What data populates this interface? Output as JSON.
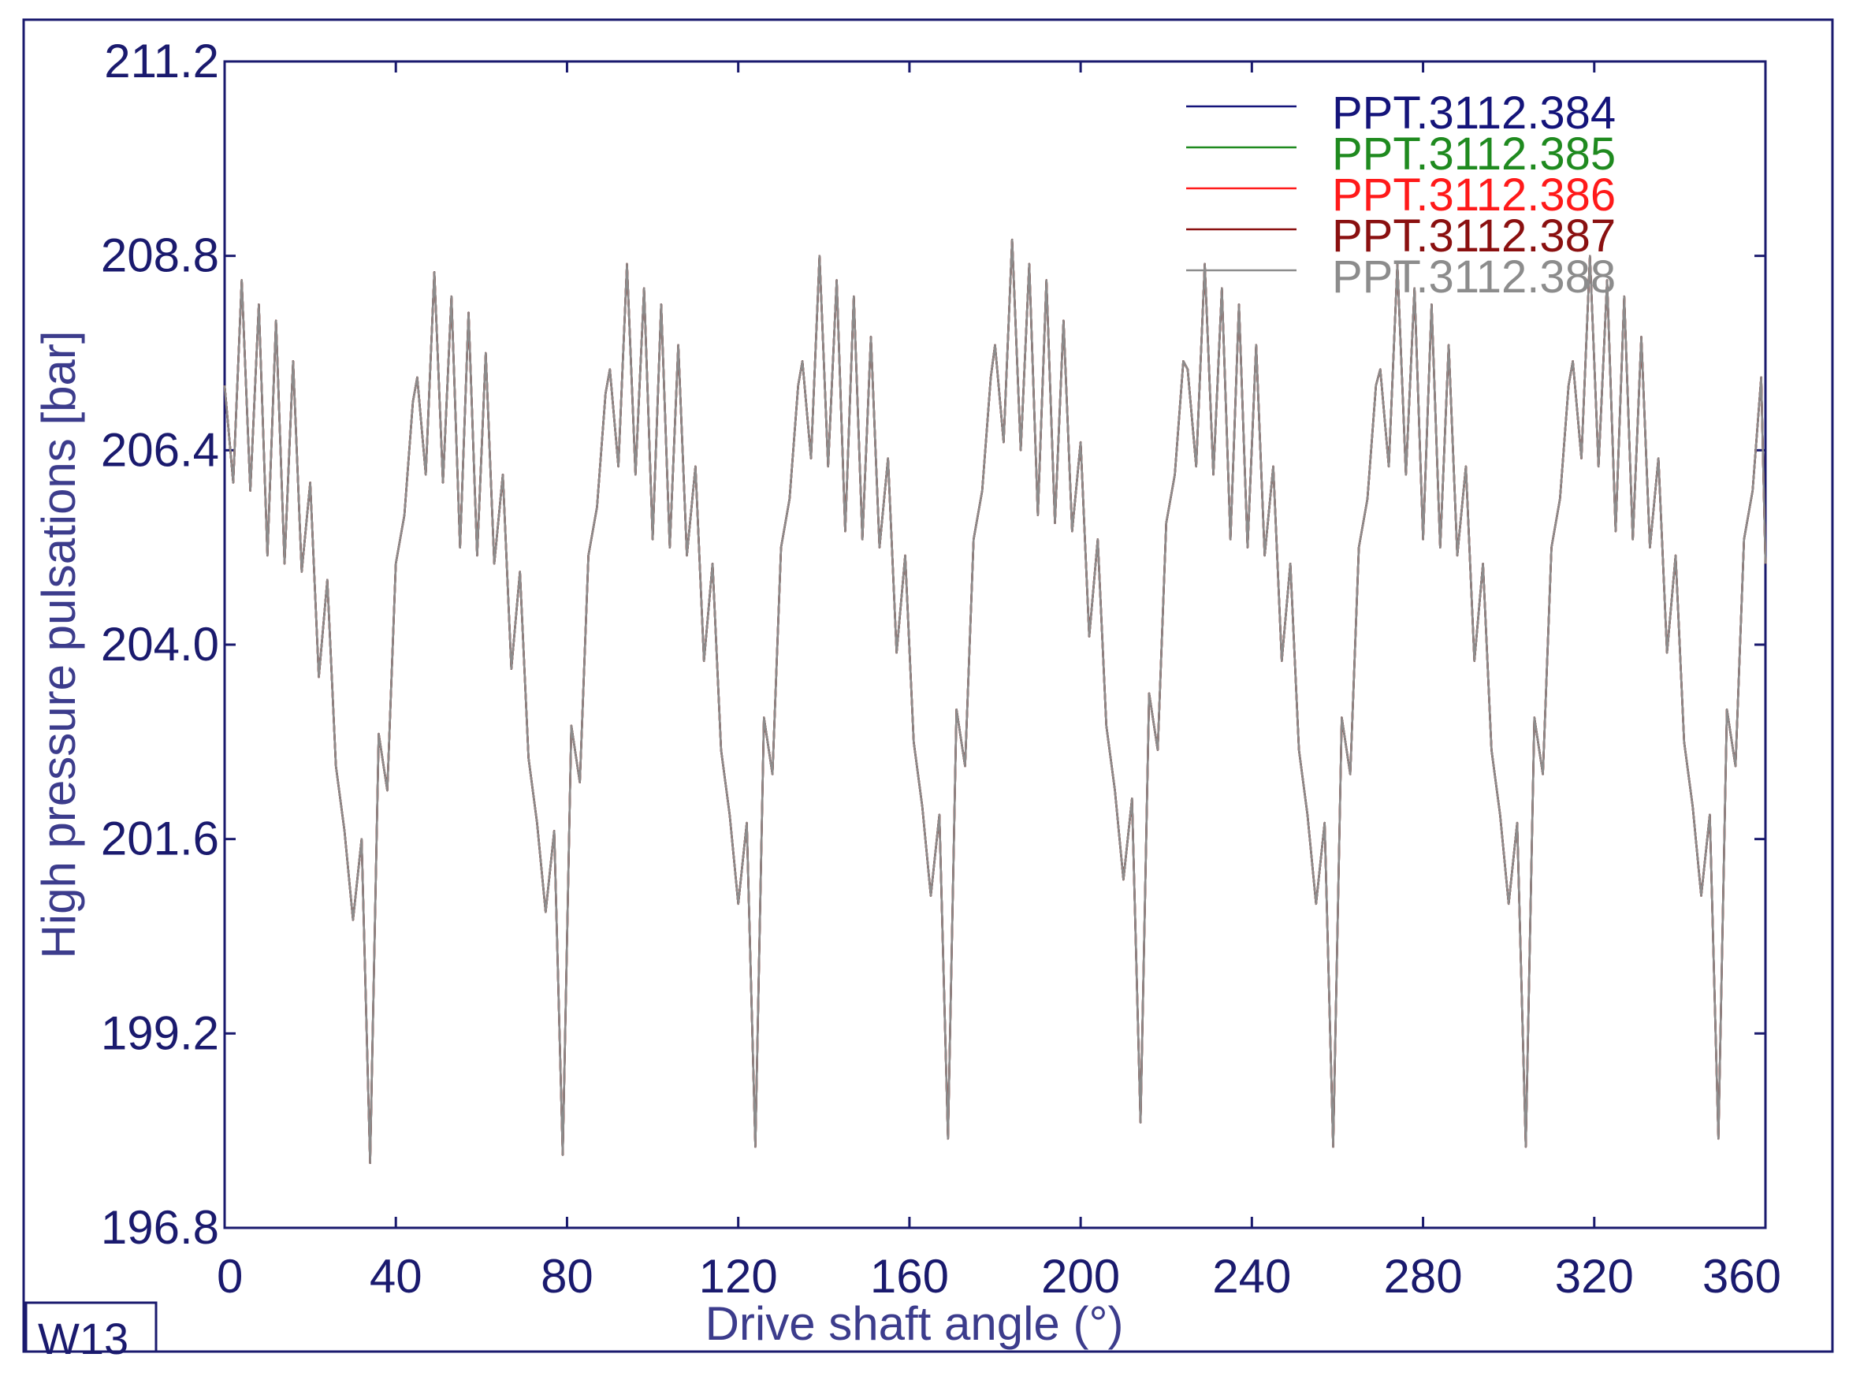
{
  "chart_data": {
    "type": "line",
    "title": "",
    "xlabel": "Drive shaft angle (°)",
    "ylabel": "High pressure pulsations  [bar]",
    "xlim": [
      0,
      360
    ],
    "ylim": [
      196.8,
      211.2
    ],
    "x_ticks": [
      "0",
      "40",
      "80",
      "120",
      "160",
      "200",
      "240",
      "280",
      "320",
      "360"
    ],
    "y_ticks": [
      "196.8",
      "199.2",
      "201.6",
      "204.0",
      "206.4",
      "208.8",
      "211.2"
    ],
    "grid": false,
    "legend_position": "top-right",
    "tag": "W13",
    "colors": {
      "frame": "#1a1a6e",
      "text": "#1a1a6e",
      "axis_title": "#3c3c8c"
    },
    "series": [
      {
        "name": "PPT.3112.384",
        "color": "#14147a"
      },
      {
        "name": "PPT.3112.385",
        "color": "#1f8a1f"
      },
      {
        "name": "PPT.3112.386",
        "color": "#ff1a1a"
      },
      {
        "name": "PPT.3112.387",
        "color": "#8a1010"
      },
      {
        "name": "PPT.3112.388",
        "color": "#8c8c8c"
      }
    ],
    "waveform": {
      "period": 45,
      "x": [
        0,
        2,
        4,
        6,
        8,
        10,
        12,
        14,
        16,
        18,
        20,
        22,
        24,
        26,
        28,
        30,
        32,
        34,
        36,
        38,
        40,
        42,
        44
      ],
      "y": [
        207.2,
        206.0,
        208.5,
        205.9,
        208.2,
        205.1,
        208.0,
        205.0,
        207.5,
        204.9,
        206.0,
        203.6,
        204.8,
        202.5,
        201.7,
        200.6,
        201.6,
        197.6,
        202.9,
        202.2,
        205.0,
        205.6,
        207.0
      ]
    },
    "cycle_offsets": [
      {
        "start": 0,
        "dy": 0.0
      },
      {
        "start": 45,
        "dy": 0.1
      },
      {
        "start": 90,
        "dy": 0.2
      },
      {
        "start": 135,
        "dy": 0.3
      },
      {
        "start": 180,
        "dy": 0.5
      },
      {
        "start": 225,
        "dy": 0.2
      },
      {
        "start": 270,
        "dy": 0.2
      },
      {
        "start": 315,
        "dy": 0.3
      }
    ]
  }
}
